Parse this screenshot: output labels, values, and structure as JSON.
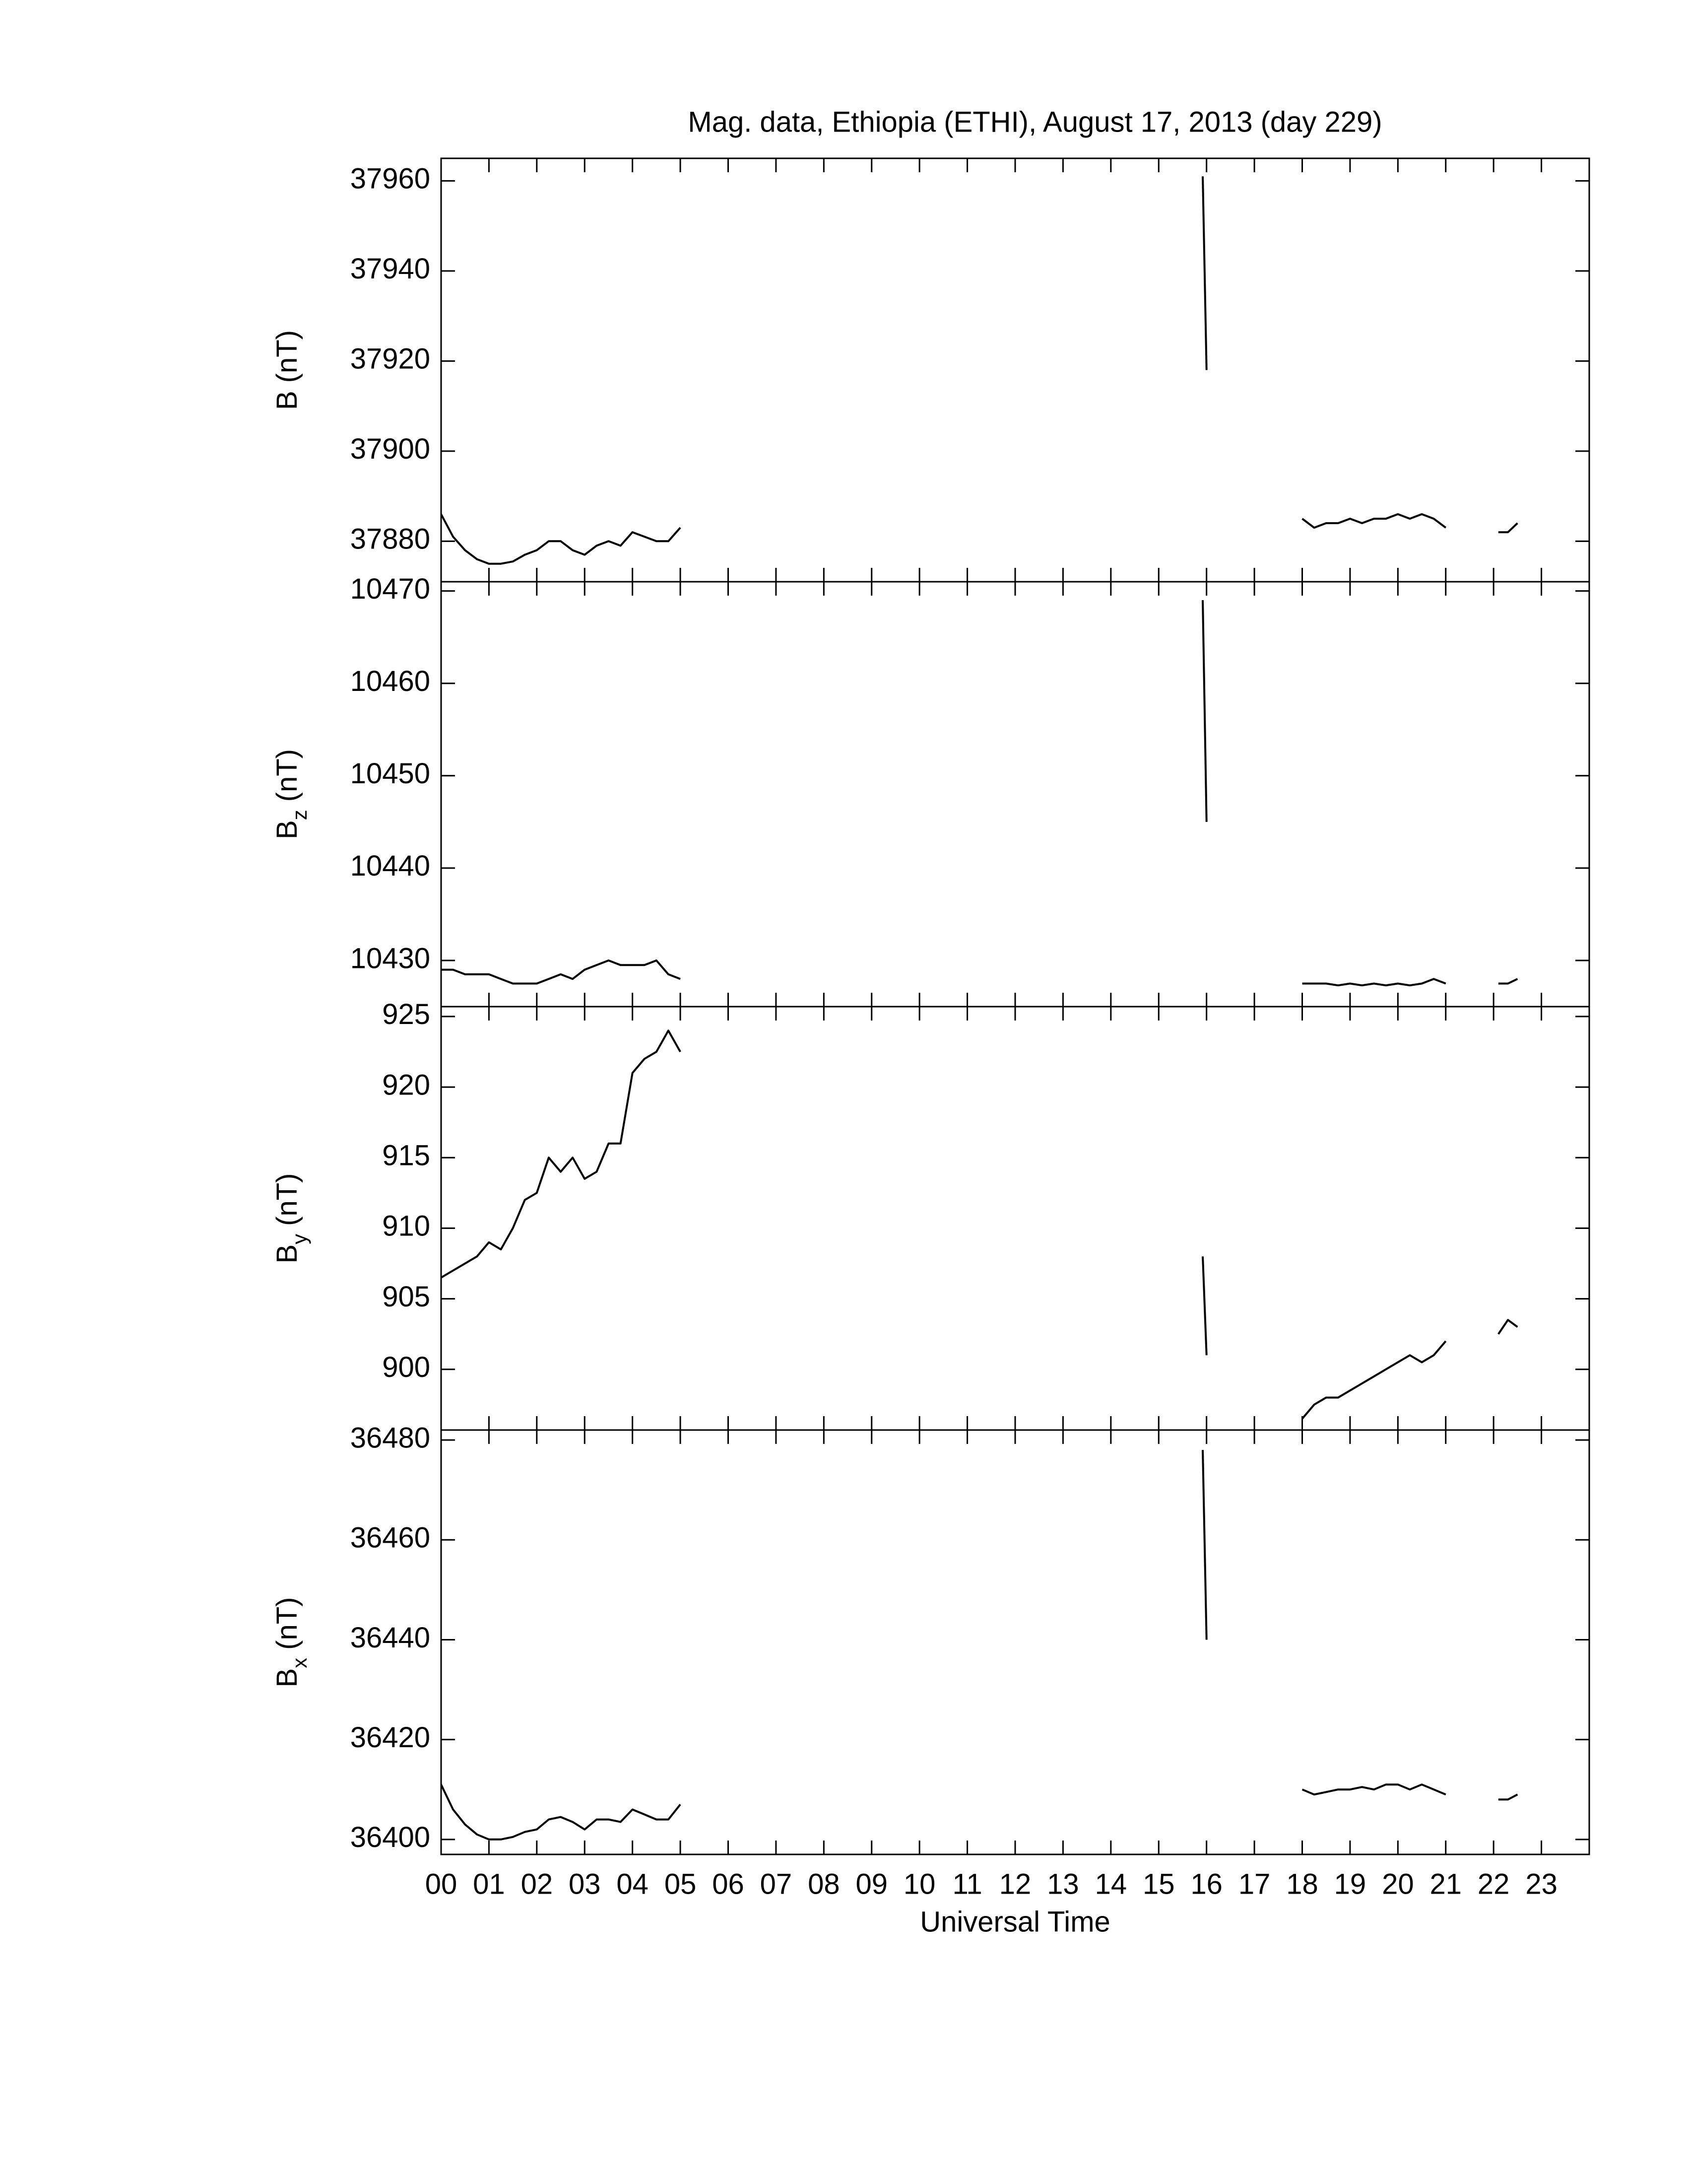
{
  "chart_data": [
    {
      "type": "line",
      "title": "Mag. data, Ethiopia (ETHI), August 17, 2013 (day 229)",
      "ylabel": "B",
      "ylabel_unit": "(nT)",
      "x": [
        0,
        0.25,
        0.5,
        0.75,
        1,
        1.25,
        1.5,
        1.75,
        2,
        2.25,
        2.5,
        2.75,
        3,
        3.25,
        3.5,
        3.75,
        4,
        4.25,
        4.5,
        4.75,
        5,
        10,
        15.92,
        16,
        17,
        18,
        18.25,
        18.5,
        18.75,
        19,
        19.25,
        19.5,
        19.75,
        20,
        20.25,
        20.5,
        20.75,
        21,
        21.5,
        22.1,
        22.3,
        22.5
      ],
      "series": [
        {
          "color": "#000000",
          "values": [
            37886,
            37881,
            37878,
            37876,
            37875,
            37875,
            37875.5,
            37877,
            37878,
            37880,
            37880,
            37878,
            37877,
            37879,
            37880,
            37879,
            37882,
            37881,
            37880,
            37880,
            37883,
            null,
            37961,
            37918,
            null,
            37885,
            37883,
            37884,
            37884,
            37885,
            37884,
            37885,
            37885,
            37886,
            37885,
            37886,
            37885,
            37883,
            null,
            37882,
            37882,
            37884
          ]
        }
      ],
      "xlim": [
        0,
        24
      ],
      "xticks": [
        0,
        1,
        2,
        3,
        4,
        5,
        6,
        7,
        8,
        9,
        10,
        11,
        12,
        13,
        14,
        15,
        16,
        17,
        18,
        19,
        20,
        21,
        22,
        23
      ],
      "ylim": [
        37871,
        37965
      ],
      "yticks": [
        37880,
        37900,
        37920,
        37940,
        37960
      ]
    },
    {
      "type": "line",
      "ylabel": "B",
      "ylabel_subscript": "z",
      "ylabel_unit": "(nT)",
      "x": [
        0,
        0.25,
        0.5,
        0.75,
        1,
        1.25,
        1.5,
        1.75,
        2,
        2.25,
        2.5,
        2.75,
        3,
        3.25,
        3.5,
        3.75,
        4,
        4.25,
        4.5,
        4.75,
        5,
        10,
        15.92,
        16,
        17,
        18,
        18.25,
        18.5,
        18.75,
        19,
        19.25,
        19.5,
        19.75,
        20,
        20.25,
        20.5,
        20.75,
        21,
        21.5,
        22.1,
        22.3,
        22.5
      ],
      "series": [
        {
          "color": "#000000",
          "values": [
            10429,
            10429,
            10428.5,
            10428.5,
            10428.5,
            10428,
            10427.5,
            10427.5,
            10427.5,
            10428,
            10428.5,
            10428,
            10429,
            10429.5,
            10430,
            10429.5,
            10429.5,
            10429.5,
            10430,
            10428.5,
            10428,
            null,
            10469,
            10445,
            null,
            10427.5,
            10427.5,
            10427.5,
            10427.3,
            10427.5,
            10427.3,
            10427.5,
            10427.3,
            10427.5,
            10427.3,
            10427.5,
            10428,
            10427.5,
            null,
            10427.5,
            10427.5,
            10428
          ]
        }
      ],
      "xlim": [
        0,
        24
      ],
      "xticks": [
        0,
        1,
        2,
        3,
        4,
        5,
        6,
        7,
        8,
        9,
        10,
        11,
        12,
        13,
        14,
        15,
        16,
        17,
        18,
        19,
        20,
        21,
        22,
        23
      ],
      "ylim": [
        10425,
        10471
      ],
      "yticks": [
        10430,
        10440,
        10450,
        10460,
        10470
      ]
    },
    {
      "type": "line",
      "ylabel": "B",
      "ylabel_subscript": "y",
      "ylabel_unit": "(nT)",
      "x": [
        0,
        0.25,
        0.5,
        0.75,
        1,
        1.25,
        1.5,
        1.75,
        2,
        2.25,
        2.5,
        2.75,
        3,
        3.25,
        3.5,
        3.75,
        4,
        4.25,
        4.5,
        4.75,
        5,
        10,
        15.92,
        16,
        17,
        18,
        18.25,
        18.5,
        18.75,
        19,
        19.25,
        19.5,
        19.75,
        20,
        20.25,
        20.5,
        20.75,
        21,
        21.5,
        22.1,
        22.3,
        22.5
      ],
      "series": [
        {
          "color": "#000000",
          "values": [
            906.5,
            907,
            907.5,
            908,
            909,
            908.5,
            910,
            912,
            912.5,
            915,
            914,
            915,
            913.5,
            914,
            916,
            916,
            921,
            922,
            922.5,
            924,
            922.5,
            null,
            908,
            901,
            null,
            896.5,
            897.5,
            898,
            898,
            898.5,
            899,
            899.5,
            900,
            900.5,
            901,
            900.5,
            901,
            902,
            null,
            902.5,
            903.5,
            903
          ]
        }
      ],
      "xlim": [
        0,
        24
      ],
      "xticks": [
        0,
        1,
        2,
        3,
        4,
        5,
        6,
        7,
        8,
        9,
        10,
        11,
        12,
        13,
        14,
        15,
        16,
        17,
        18,
        19,
        20,
        21,
        22,
        23
      ],
      "ylim": [
        895.7,
        925.7
      ],
      "yticks": [
        900,
        905,
        910,
        915,
        920,
        925
      ]
    },
    {
      "type": "line",
      "ylabel": "B",
      "ylabel_subscript": "x",
      "ylabel_unit": "(nT)",
      "xlabel": "Universal Time",
      "x": [
        0,
        0.25,
        0.5,
        0.75,
        1,
        1.25,
        1.5,
        1.75,
        2,
        2.25,
        2.5,
        2.75,
        3,
        3.25,
        3.5,
        3.75,
        4,
        4.25,
        4.5,
        4.75,
        5,
        10,
        15.92,
        16,
        17,
        18,
        18.25,
        18.5,
        18.75,
        19,
        19.25,
        19.5,
        19.75,
        20,
        20.25,
        20.5,
        20.75,
        21,
        21.5,
        22.1,
        22.3,
        22.5
      ],
      "series": [
        {
          "color": "#000000",
          "values": [
            36411,
            36406,
            36403,
            36401,
            36400,
            36400,
            36400.5,
            36401.5,
            36402,
            36404,
            36404.5,
            36403.5,
            36402,
            36404,
            36404,
            36403.5,
            36406,
            36405,
            36404,
            36404,
            36407,
            null,
            36478,
            36440,
            null,
            36410,
            36409,
            36409.5,
            36410,
            36410,
            36410.5,
            36410,
            36411,
            36411,
            36410,
            36411,
            36410,
            36409,
            null,
            36408,
            36408,
            36409
          ]
        }
      ],
      "xlim": [
        0,
        24
      ],
      "xticks": [
        {
          "value": 0,
          "label": "00"
        },
        {
          "value": 1,
          "label": "01"
        },
        {
          "value": 2,
          "label": "02"
        },
        {
          "value": 3,
          "label": "03"
        },
        {
          "value": 4,
          "label": "04"
        },
        {
          "value": 5,
          "label": "05"
        },
        {
          "value": 6,
          "label": "06"
        },
        {
          "value": 7,
          "label": "07"
        },
        {
          "value": 8,
          "label": "08"
        },
        {
          "value": 9,
          "label": "09"
        },
        10,
        11,
        12,
        13,
        14,
        15,
        16,
        17,
        18,
        19,
        20,
        21,
        22,
        23
      ],
      "ylim": [
        36397,
        36482
      ],
      "yticks": [
        36400,
        36420,
        36440,
        36460,
        36480
      ]
    }
  ]
}
